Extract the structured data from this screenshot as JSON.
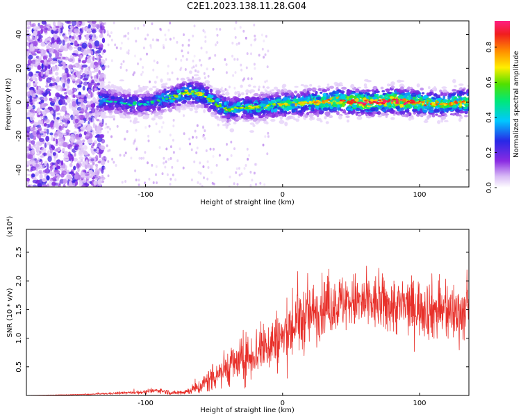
{
  "figure": {
    "title": "C2E1.2023.138.11.28.G04"
  },
  "chart_data": [
    {
      "type": "heatmap",
      "title": "C2E1.2023.138.11.28.G04",
      "xlabel": "Height of straight line (km)",
      "ylabel": "Frequency (Hz)",
      "xlim": [
        -187,
        136
      ],
      "ylim": [
        -50,
        48
      ],
      "xticks": [
        -100,
        0,
        100
      ],
      "xtick_labels": [
        "-100",
        "0",
        "100"
      ],
      "yticks": [
        -40,
        -20,
        0,
        20,
        40
      ],
      "ytick_labels": [
        "-40",
        "-20",
        "0",
        "20",
        "40"
      ],
      "colorbar": {
        "label": "Normalized spectral amplitude",
        "range": [
          0,
          0.95
        ],
        "ticks": [
          0.0,
          0.2,
          0.4,
          0.6,
          0.8
        ],
        "tick_labels": [
          "0.0",
          "0.2",
          "0.4",
          "0.6",
          "0.8"
        ],
        "colormap": "rainbow (white-violet-blue-cyan-green-yellow-orange-red-pink)"
      },
      "ridge": {
        "x": [
          -130,
          -120,
          -110,
          -100,
          -90,
          -80,
          -70,
          -60,
          -50,
          -40,
          -30,
          -20,
          -10,
          0,
          10,
          20,
          30,
          40,
          50,
          60,
          70,
          80,
          90,
          100,
          110,
          120,
          130
        ],
        "freq": [
          1,
          0,
          -1,
          -1,
          1,
          3,
          6,
          5,
          0,
          -4,
          -3,
          -3,
          -2,
          -1,
          -1,
          0,
          0,
          1,
          0,
          0,
          0,
          1,
          0,
          0,
          -1,
          -1,
          0
        ],
        "amplitude": [
          0.35,
          0.3,
          0.35,
          0.3,
          0.4,
          0.45,
          0.5,
          0.5,
          0.45,
          0.5,
          0.45,
          0.5,
          0.5,
          0.55,
          0.55,
          0.6,
          0.65,
          0.7,
          0.75,
          0.8,
          0.75,
          0.8,
          0.8,
          0.7,
          0.65,
          0.6,
          0.7
        ]
      },
      "noise_region_x": [
        -187,
        -130
      ],
      "grid": false
    },
    {
      "type": "line",
      "xlabel": "Height of straight line (km)",
      "ylabel": "SNR (10 * v/v)",
      "y_multiplier": "(x10⁴)",
      "xlim": [
        -187,
        136
      ],
      "ylim": [
        0,
        2.9
      ],
      "xticks": [
        -100,
        0,
        100
      ],
      "xtick_labels": [
        "-100",
        "0",
        "100"
      ],
      "yticks": [
        0.5,
        1.0,
        1.5,
        2.0,
        2.5
      ],
      "ytick_labels": [
        "0.5",
        "1.0",
        "1.5",
        "2.0",
        "2.5"
      ],
      "series": [
        {
          "color": "#e8302a",
          "x": [
            -187,
            -160,
            -140,
            -120,
            -100,
            -90,
            -80,
            -70,
            -60,
            -50,
            -40,
            -30,
            -20,
            -10,
            0,
            10,
            20,
            30,
            40,
            50,
            60,
            70,
            80,
            90,
            100,
            110,
            120,
            130,
            136
          ],
          "y": [
            0.0,
            0.01,
            0.02,
            0.04,
            0.06,
            0.09,
            0.04,
            0.07,
            0.15,
            0.35,
            0.5,
            0.6,
            0.75,
            0.9,
            1.0,
            1.25,
            1.4,
            1.55,
            1.6,
            1.65,
            1.6,
            1.6,
            1.55,
            1.55,
            1.55,
            1.5,
            1.45,
            1.45,
            1.45
          ],
          "spread": [
            0.0,
            0.005,
            0.01,
            0.02,
            0.03,
            0.04,
            0.03,
            0.05,
            0.12,
            0.25,
            0.3,
            0.35,
            0.4,
            0.45,
            0.5,
            0.55,
            0.5,
            0.45,
            0.45,
            0.45,
            0.45,
            0.45,
            0.45,
            0.45,
            0.45,
            0.5,
            0.5,
            0.45,
            0.45
          ]
        }
      ],
      "grid": false
    }
  ]
}
